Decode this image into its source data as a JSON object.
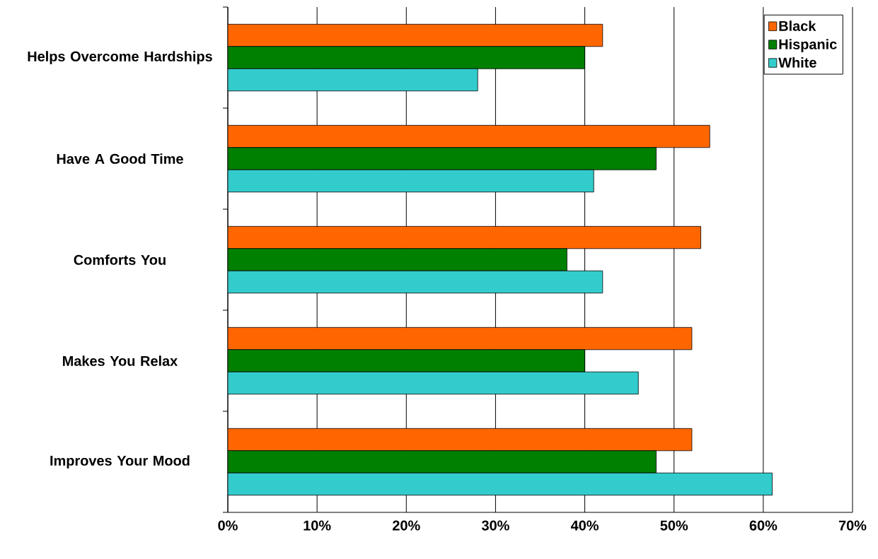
{
  "chart_data": {
    "type": "bar",
    "orientation": "horizontal",
    "categories": [
      "Helps Overcome Hardships",
      "Have A Good Time",
      "Comforts You",
      "Makes You Relax",
      "Improves Your Mood"
    ],
    "series": [
      {
        "name": "Black",
        "color": "#ff6600",
        "values": [
          42,
          54,
          53,
          52,
          52
        ]
      },
      {
        "name": "Hispanic",
        "color": "#008000",
        "values": [
          40,
          48,
          38,
          40,
          48
        ]
      },
      {
        "name": "White",
        "color": "#33cccc",
        "values": [
          28,
          41,
          42,
          46,
          61
        ]
      }
    ],
    "xlim": [
      0,
      70
    ],
    "xticks": [
      {
        "value": 0,
        "label": "0%"
      },
      {
        "value": 10,
        "label": "10%"
      },
      {
        "value": 20,
        "label": "20%"
      },
      {
        "value": 30,
        "label": "30%"
      },
      {
        "value": 40,
        "label": "40%"
      },
      {
        "value": 50,
        "label": "50%"
      },
      {
        "value": 60,
        "label": "60%"
      },
      {
        "value": 70,
        "label": "70%"
      }
    ],
    "grid": "x",
    "legend": "top right"
  }
}
